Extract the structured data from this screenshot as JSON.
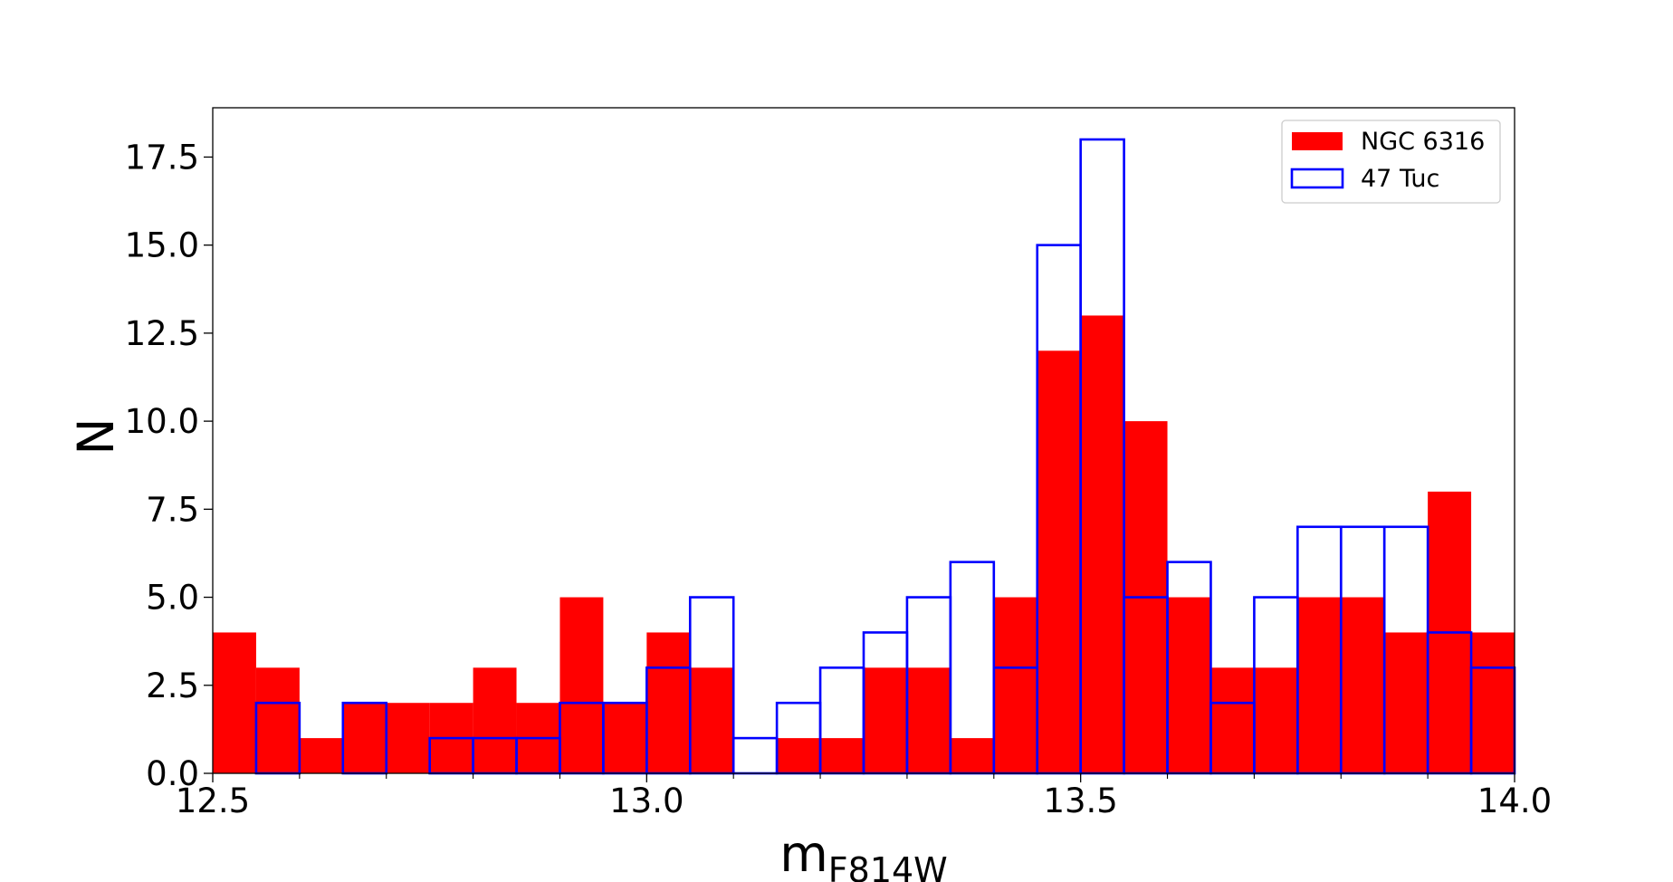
{
  "chart_data": {
    "type": "bar",
    "subtype": "histogram",
    "title": "",
    "xlabel_main": "m",
    "xlabel_sub": "F814W",
    "ylabel": "N",
    "xlim": [
      12.5,
      14.0
    ],
    "ylim": [
      0,
      18.9
    ],
    "bin_width": 0.05,
    "x_ticks": [
      "12.5",
      "13.0",
      "13.5",
      "14.0"
    ],
    "x_tick_values": [
      12.5,
      13.0,
      13.5,
      14.0
    ],
    "x_minor_tick_values": [
      12.6,
      12.7,
      12.8,
      12.9,
      13.1,
      13.2,
      13.3,
      13.4,
      13.6,
      13.7,
      13.8,
      13.9
    ],
    "y_ticks": [
      "0.0",
      "2.5",
      "5.0",
      "7.5",
      "10.0",
      "12.5",
      "15.0",
      "17.5"
    ],
    "y_tick_values": [
      0,
      2.5,
      5,
      7.5,
      10,
      12.5,
      15,
      17.5
    ],
    "grid": false,
    "legend_position": "top-right",
    "bin_edges": [
      12.5,
      12.55,
      12.6,
      12.65,
      12.7,
      12.75,
      12.8,
      12.85,
      12.9,
      12.95,
      13.0,
      13.05,
      13.1,
      13.15,
      13.2,
      13.25,
      13.3,
      13.35,
      13.4,
      13.45,
      13.5,
      13.55,
      13.6,
      13.65,
      13.7,
      13.75,
      13.8,
      13.85,
      13.9,
      13.95,
      14.0
    ],
    "series": [
      {
        "name": "NGC 6316",
        "style": "filled",
        "color": "#ff0000",
        "values": [
          4,
          3,
          1,
          2,
          2,
          2,
          3,
          2,
          5,
          2,
          4,
          3,
          0,
          1,
          1,
          3,
          3,
          1,
          5,
          12,
          13,
          10,
          5,
          3,
          3,
          5,
          5,
          4,
          8,
          4
        ]
      },
      {
        "name": "47 Tuc",
        "style": "outline",
        "color": "#0000ff",
        "values": [
          0,
          2,
          0,
          2,
          0,
          1,
          1,
          1,
          2,
          2,
          3,
          5,
          1,
          2,
          3,
          4,
          5,
          6,
          3,
          15,
          18,
          5,
          6,
          2,
          5,
          7,
          7,
          7,
          4,
          3
        ]
      }
    ]
  }
}
